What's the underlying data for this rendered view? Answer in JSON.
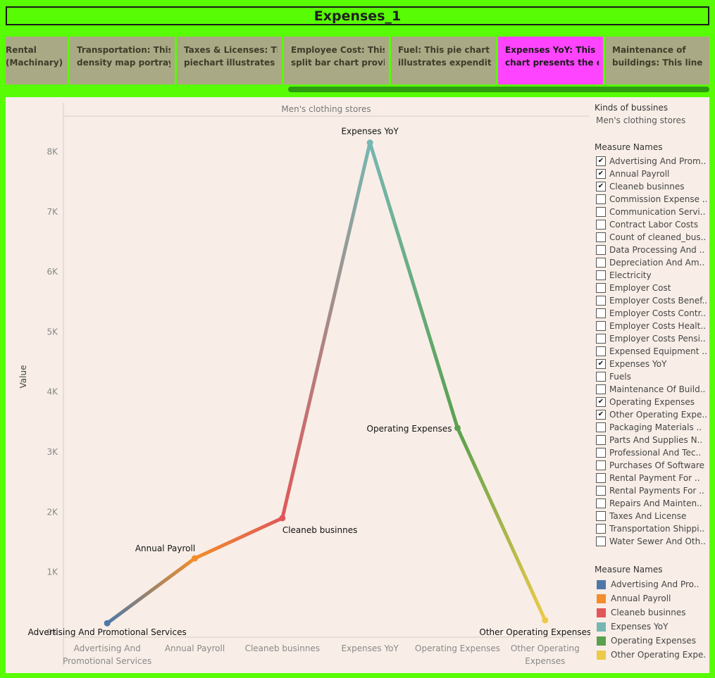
{
  "dashboard": {
    "title": "Expenses_1"
  },
  "tabs": [
    {
      "line1": "Rental",
      "line2": "(Machinary):..",
      "active": false
    },
    {
      "line1": "Transportation: This",
      "line2": "density map portrays ..",
      "active": false
    },
    {
      "line1": "Taxes & Licenses: This",
      "line2": "piechart illustrates t..",
      "active": false
    },
    {
      "line1": "Employee Cost: This",
      "line2": "split bar chart provid..",
      "active": false
    },
    {
      "line1": "Fuel: This pie chart",
      "line2": "illustrates expenditur..",
      "active": false
    },
    {
      "line1": "Expenses YoY: This line",
      "line2": "chart presents the ex..",
      "active": true
    },
    {
      "line1": "Maintenance of",
      "line2": "buildings: This line ch..",
      "active": false
    }
  ],
  "colors": {
    "background": "#58fc04",
    "panel": "#f8eee7",
    "tab": "#aaa985",
    "tab_active": "#ff44ff",
    "scroll_thumb": "#2e9a12"
  },
  "filters": {
    "kinds_heading": "Kinds of bussines",
    "kinds_value": "Men's clothing stores",
    "measure_heading": "Measure Names",
    "items": [
      {
        "label": "Advertising And Prom..",
        "checked": true
      },
      {
        "label": "Annual Payroll",
        "checked": true
      },
      {
        "label": "Cleaneb businnes",
        "checked": true
      },
      {
        "label": "Commission Expense ..",
        "checked": false
      },
      {
        "label": "Communication Servi..",
        "checked": false
      },
      {
        "label": "Contract Labor Costs",
        "checked": false
      },
      {
        "label": "Count of cleaned_bus..",
        "checked": false
      },
      {
        "label": "Data Processing And ..",
        "checked": false
      },
      {
        "label": "Depreciation And Am..",
        "checked": false
      },
      {
        "label": "Electricity",
        "checked": false
      },
      {
        "label": "Employer Cost",
        "checked": false
      },
      {
        "label": "Employer Costs Benef..",
        "checked": false
      },
      {
        "label": "Employer Costs Contr..",
        "checked": false
      },
      {
        "label": "Employer Costs Healt..",
        "checked": false
      },
      {
        "label": "Employer Costs Pensi..",
        "checked": false
      },
      {
        "label": "Expensed Equipment ..",
        "checked": false
      },
      {
        "label": "Expenses YoY",
        "checked": true
      },
      {
        "label": "Fuels",
        "checked": false
      },
      {
        "label": "Maintenance Of Build..",
        "checked": false
      },
      {
        "label": "Operating Expenses",
        "checked": true
      },
      {
        "label": "Other Operating Expe..",
        "checked": true
      },
      {
        "label": "Packaging Materials ..",
        "checked": false
      },
      {
        "label": "Parts And Supplies N..",
        "checked": false
      },
      {
        "label": "Professional And Tec..",
        "checked": false
      },
      {
        "label": "Purchases Of Software",
        "checked": false
      },
      {
        "label": "Rental Payment For ..",
        "checked": false
      },
      {
        "label": "Rental Payments For ..",
        "checked": false
      },
      {
        "label": "Repairs And Mainten..",
        "checked": false
      },
      {
        "label": "Taxes And License",
        "checked": false
      },
      {
        "label": "Transportation Shippi..",
        "checked": false
      },
      {
        "label": "Water Sewer And Oth..",
        "checked": false
      }
    ]
  },
  "legend": {
    "heading": "Measure Names",
    "items": [
      {
        "label": "Advertising And Pro..",
        "color": "#4e79a7"
      },
      {
        "label": "Annual Payroll",
        "color": "#f28e2b"
      },
      {
        "label": "Cleaneb businnes",
        "color": "#e15759"
      },
      {
        "label": "Expenses YoY",
        "color": "#76b7b2"
      },
      {
        "label": "Operating Expenses",
        "color": "#59a14f"
      },
      {
        "label": "Other Operating Expe..",
        "color": "#edc948"
      }
    ]
  },
  "chart_data": {
    "type": "line",
    "pane_header": "Men's clothing stores",
    "ylabel": "Value",
    "ylim": [
      0,
      8600
    ],
    "yticks": [
      0,
      1000,
      2000,
      3000,
      4000,
      5000,
      6000,
      7000,
      8000
    ],
    "ytick_labels": [
      "0K",
      "1K",
      "2K",
      "3K",
      "4K",
      "5K",
      "6K",
      "7K",
      "8K"
    ],
    "categories": [
      {
        "line1": "Advertising And",
        "line2": "Promotional Services"
      },
      {
        "line1": "Annual Payroll",
        "line2": ""
      },
      {
        "line1": "Cleaneb businnes",
        "line2": ""
      },
      {
        "line1": "Expenses YoY",
        "line2": ""
      },
      {
        "line1": "Operating Expenses",
        "line2": ""
      },
      {
        "line1": "Other Operating",
        "line2": "Expenses"
      }
    ],
    "points": [
      {
        "label": "Advertising And Promotional Services",
        "value": 150,
        "color": "#4e79a7"
      },
      {
        "label": "Annual Payroll",
        "value": 1230,
        "color": "#f28e2b"
      },
      {
        "label": "Cleaneb businnes",
        "value": 1900,
        "color": "#e15759"
      },
      {
        "label": "Expenses YoY",
        "value": 8150,
        "color": "#76b7b2"
      },
      {
        "label": "Operating Expenses",
        "value": 3400,
        "color": "#59a14f"
      },
      {
        "label": "Other Operating Expenses",
        "value": 200,
        "color": "#edc948"
      }
    ],
    "grid": false
  }
}
